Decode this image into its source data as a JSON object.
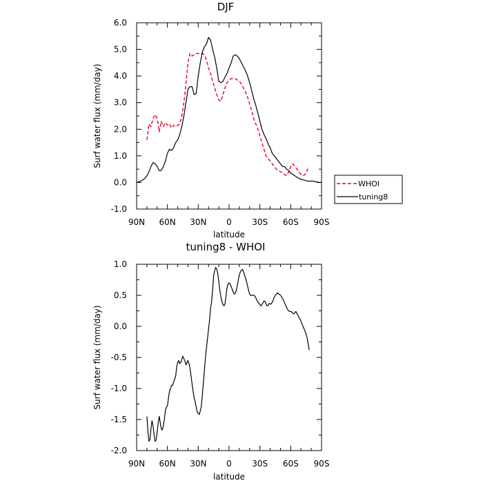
{
  "chart_data": [
    {
      "type": "line",
      "title": "DJF",
      "xlabel": "latitude",
      "ylabel": "Surf water flux (mm/day)",
      "xlim": [
        90,
        -90
      ],
      "ylim": [
        -1.0,
        6.0
      ],
      "xticks": [
        90,
        60,
        30,
        0,
        -30,
        -60,
        -90
      ],
      "xticklabels": [
        "90N",
        "60N",
        "30N",
        "0",
        "30S",
        "60S",
        "90S"
      ],
      "yticks": [
        -1,
        0,
        1,
        2,
        3,
        4,
        5,
        6
      ],
      "yticklabels": [
        "-1.0",
        "0.0",
        "1.0",
        "2.0",
        "3.0",
        "4.0",
        "5.0",
        "6.0"
      ],
      "grid": false,
      "legend": "right, outside plot",
      "series": [
        {
          "name": "WHOI",
          "color": "#e8001e",
          "dash": "dashed",
          "x": [
            80,
            78,
            76,
            74,
            72,
            70,
            68,
            66,
            64,
            62,
            60,
            58,
            56,
            54,
            52,
            50,
            48,
            46,
            44,
            42,
            40,
            38,
            36,
            34,
            32,
            30,
            28,
            26,
            24,
            22,
            20,
            18,
            16,
            14,
            12,
            10,
            8,
            6,
            4,
            2,
            0,
            -2,
            -4,
            -6,
            -8,
            -10,
            -12,
            -14,
            -16,
            -18,
            -20,
            -22,
            -24,
            -26,
            -28,
            -30,
            -32,
            -34,
            -36,
            -38,
            -40,
            -42,
            -44,
            -46,
            -48,
            -50,
            -52,
            -54,
            -56,
            -58,
            -60,
            -62,
            -64,
            -66,
            -68,
            -70,
            -72,
            -74,
            -76,
            -78
          ],
          "y": [
            1.6,
            2.2,
            2.1,
            2.4,
            2.55,
            2.4,
            1.9,
            2.3,
            2.1,
            2.25,
            2.15,
            2.2,
            2.05,
            2.15,
            2.1,
            2.15,
            2.2,
            2.5,
            3.0,
            3.7,
            4.5,
            4.85,
            4.75,
            4.8,
            4.85,
            4.85,
            4.85,
            4.85,
            4.8,
            4.6,
            4.3,
            4.1,
            3.8,
            3.55,
            3.3,
            3.1,
            3.05,
            3.3,
            3.55,
            3.75,
            3.85,
            3.9,
            3.9,
            3.9,
            3.85,
            3.8,
            3.7,
            3.55,
            3.4,
            3.2,
            2.95,
            2.7,
            2.4,
            2.2,
            2.0,
            1.75,
            1.5,
            1.25,
            1.0,
            0.9,
            0.8,
            0.7,
            0.6,
            0.5,
            0.45,
            0.4,
            0.38,
            0.3,
            0.25,
            0.4,
            0.6,
            0.7,
            0.6,
            0.5,
            0.4,
            0.3,
            0.25,
            0.3,
            0.45,
            0.6
          ]
        },
        {
          "name": "tuning8",
          "color": "#000000",
          "dash": "solid",
          "x": [
            90,
            88,
            86,
            84,
            82,
            80,
            78,
            76,
            74,
            72,
            70,
            68,
            66,
            64,
            62,
            60,
            58,
            56,
            54,
            52,
            50,
            48,
            46,
            44,
            42,
            40,
            38,
            36,
            34,
            32,
            30,
            28,
            26,
            24,
            22,
            20,
            18,
            16,
            14,
            12,
            10,
            8,
            6,
            4,
            2,
            0,
            -2,
            -4,
            -6,
            -8,
            -10,
            -12,
            -14,
            -16,
            -18,
            -20,
            -22,
            -24,
            -26,
            -28,
            -30,
            -32,
            -34,
            -36,
            -38,
            -40,
            -42,
            -44,
            -46,
            -48,
            -50,
            -52,
            -54,
            -56,
            -58,
            -60,
            -62,
            -64,
            -66,
            -68,
            -70,
            -72,
            -74,
            -76,
            -78,
            -80,
            -82,
            -84,
            -86,
            -88,
            -90
          ],
          "y": [
            0.0,
            0.02,
            0.05,
            0.1,
            0.15,
            0.25,
            0.4,
            0.6,
            0.75,
            0.7,
            0.6,
            0.45,
            0.45,
            0.6,
            0.8,
            1.1,
            1.25,
            1.2,
            1.3,
            1.5,
            1.6,
            1.8,
            2.1,
            2.5,
            3.0,
            3.5,
            3.6,
            3.6,
            3.3,
            3.35,
            4.0,
            4.5,
            4.9,
            5.1,
            5.2,
            5.45,
            5.35,
            5.0,
            4.7,
            4.3,
            3.8,
            3.75,
            3.8,
            3.95,
            4.1,
            4.3,
            4.5,
            4.75,
            4.8,
            4.75,
            4.65,
            4.5,
            4.35,
            4.2,
            4.0,
            3.75,
            3.45,
            3.15,
            2.9,
            2.6,
            2.3,
            2.0,
            1.8,
            1.65,
            1.45,
            1.3,
            1.1,
            1.0,
            0.9,
            0.8,
            0.7,
            0.6,
            0.6,
            0.5,
            0.45,
            0.35,
            0.3,
            0.25,
            0.2,
            0.15,
            0.12,
            0.1,
            0.08,
            0.05,
            0.05,
            0.05,
            0.05,
            0.03,
            0.02,
            0.0,
            0.0
          ]
        }
      ]
    },
    {
      "type": "line",
      "title": "tuning8 - WHOI",
      "xlabel": "latitude",
      "ylabel": "Surf water flux (mm/day)",
      "xlim": [
        90,
        -90
      ],
      "ylim": [
        -2.0,
        1.0
      ],
      "xticks": [
        90,
        60,
        30,
        0,
        -30,
        -60,
        -90
      ],
      "xticklabels": [
        "90N",
        "60N",
        "30N",
        "0",
        "30S",
        "60S",
        "90S"
      ],
      "yticks": [
        -2.0,
        -1.5,
        -1.0,
        -0.5,
        0.0,
        0.5,
        1.0
      ],
      "yticklabels": [
        "-2.0",
        "-1.5",
        "-1.0",
        "-0.5",
        "0.0",
        "0.5",
        "1.0"
      ],
      "grid": false,
      "series": [
        {
          "color": "#000000",
          "dash": "solid",
          "x": [
            80,
            79,
            78,
            77,
            76,
            75,
            74,
            73,
            72,
            71,
            70,
            69,
            68,
            67,
            66,
            65,
            64,
            63,
            62,
            61,
            60,
            59,
            58,
            57,
            56,
            55,
            54,
            53,
            52,
            51,
            50,
            49,
            48,
            47,
            46,
            45,
            44,
            43,
            42,
            41,
            40,
            39,
            38,
            37,
            36,
            35,
            34,
            33,
            32,
            31,
            30,
            29,
            28,
            27,
            26,
            25,
            24,
            23,
            22,
            21,
            20,
            19,
            18,
            17,
            16,
            15,
            14,
            13,
            12,
            11,
            10,
            9,
            8,
            7,
            6,
            5,
            4,
            3,
            2,
            1,
            0,
            -1,
            -2,
            -3,
            -4,
            -5,
            -6,
            -7,
            -8,
            -9,
            -10,
            -11,
            -12,
            -13,
            -14,
            -15,
            -16,
            -17,
            -18,
            -19,
            -20,
            -21,
            -22,
            -23,
            -24,
            -25,
            -26,
            -27,
            -28,
            -29,
            -30,
            -31,
            -32,
            -33,
            -34,
            -35,
            -36,
            -37,
            -38,
            -39,
            -40,
            -41,
            -42,
            -43,
            -44,
            -45,
            -46,
            -47,
            -48,
            -49,
            -50,
            -51,
            -52,
            -53,
            -54,
            -55,
            -56,
            -57,
            -58,
            -59,
            -60,
            -61,
            -62,
            -63,
            -64,
            -65,
            -66,
            -67,
            -68,
            -69,
            -70,
            -71,
            -72,
            -73,
            -74,
            -75,
            -76,
            -77,
            -78
          ],
          "y": [
            -1.45,
            -1.7,
            -1.85,
            -1.82,
            -1.65,
            -1.52,
            -1.6,
            -1.75,
            -1.85,
            -1.83,
            -1.7,
            -1.55,
            -1.45,
            -1.55,
            -1.65,
            -1.67,
            -1.6,
            -1.5,
            -1.35,
            -1.3,
            -1.28,
            -1.15,
            -1.05,
            -1.0,
            -0.95,
            -0.95,
            -0.9,
            -0.85,
            -0.8,
            -0.65,
            -0.58,
            -0.55,
            -0.6,
            -0.58,
            -0.53,
            -0.48,
            -0.52,
            -0.56,
            -0.62,
            -0.58,
            -0.55,
            -0.6,
            -0.68,
            -0.8,
            -0.93,
            -1.05,
            -1.15,
            -1.22,
            -1.3,
            -1.38,
            -1.4,
            -1.42,
            -1.36,
            -1.28,
            -1.1,
            -0.9,
            -0.7,
            -0.5,
            -0.35,
            -0.2,
            -0.05,
            0.1,
            0.3,
            0.4,
            0.6,
            0.82,
            0.9,
            0.95,
            0.92,
            0.85,
            0.72,
            0.58,
            0.48,
            0.4,
            0.35,
            0.33,
            0.36,
            0.48,
            0.62,
            0.68,
            0.7,
            0.68,
            0.64,
            0.6,
            0.55,
            0.52,
            0.53,
            0.58,
            0.66,
            0.75,
            0.83,
            0.88,
            0.9,
            0.92,
            0.88,
            0.83,
            0.78,
            0.72,
            0.65,
            0.58,
            0.52,
            0.5,
            0.5,
            0.5,
            0.5,
            0.49,
            0.46,
            0.42,
            0.4,
            0.37,
            0.35,
            0.33,
            0.35,
            0.38,
            0.41,
            0.4,
            0.36,
            0.33,
            0.34,
            0.37,
            0.36,
            0.36,
            0.39,
            0.42,
            0.47,
            0.5,
            0.52,
            0.54,
            0.52,
            0.52,
            0.5,
            0.48,
            0.45,
            0.42,
            0.38,
            0.34,
            0.3,
            0.27,
            0.25,
            0.24,
            0.24,
            0.23,
            0.21,
            0.2,
            0.22,
            0.24,
            0.21,
            0.18,
            0.14,
            0.12,
            0.08,
            0.04,
            0.0,
            -0.04,
            -0.08,
            -0.13,
            -0.19,
            -0.28,
            -0.38
          ]
        }
      ]
    }
  ]
}
